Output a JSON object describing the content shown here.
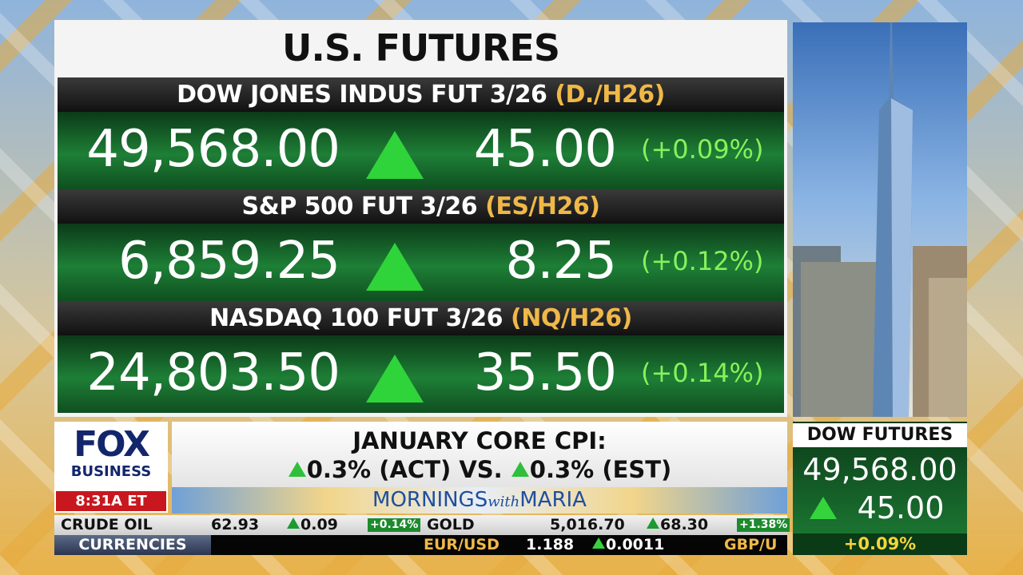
{
  "panel": {
    "title": "U.S. FUTURES",
    "rows": [
      {
        "name": "DOW JONES INDUS FUT 3/26",
        "symbol": "(D./H26)",
        "price": "49,568.00",
        "change": "45.00",
        "percent": "(+0.09%)"
      },
      {
        "name": "S&P 500 FUT 3/26",
        "symbol": "(ES/H26)",
        "price": "6,859.25",
        "change": "8.25",
        "percent": "(+0.12%)"
      },
      {
        "name": "NASDAQ 100 FUT 3/26",
        "symbol": "(NQ/H26)",
        "price": "24,803.50",
        "change": "35.50",
        "percent": "(+0.14%)"
      }
    ]
  },
  "logo": {
    "top": "FOX",
    "bottom": "BUSINESS",
    "time": "8:31A ET"
  },
  "headline": {
    "line_1": "JANUARY CORE CPI:",
    "actual": "0.3% (ACT) VS.",
    "estimate": "0.3% (EST)"
  },
  "show": {
    "part_1": "MORNINGS",
    "part_2": "with",
    "part_3": "MARIA"
  },
  "dow_box": {
    "title": "DOW FUTURES",
    "price": "49,568.00",
    "change": "45.00",
    "percent": "+0.09%"
  },
  "ticker": {
    "row_1": [
      {
        "name": "CRUDE OIL",
        "price": "62.93",
        "change": "0.09",
        "percent": "+0.14%"
      },
      {
        "name": "GOLD",
        "price": "5,016.70",
        "change": "68.30",
        "percent": "+1.38%"
      }
    ],
    "label_2": "CURRENCIES",
    "row_2": [
      {
        "name": "EUR/USD",
        "price": "1.188",
        "change": "0.0011"
      },
      {
        "name": "GBP/U"
      }
    ]
  }
}
